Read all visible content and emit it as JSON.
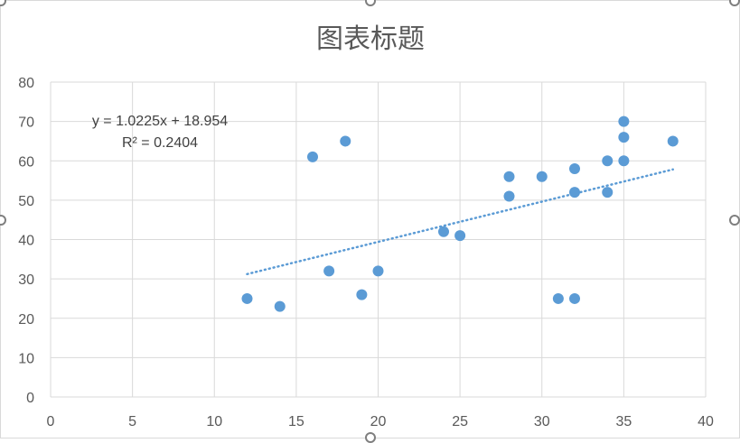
{
  "chart_data": {
    "type": "scatter",
    "title": "图表标题",
    "xlabel": "",
    "ylabel": "",
    "xlim": [
      0,
      40
    ],
    "ylim": [
      0,
      80
    ],
    "x_ticks": [
      0,
      5,
      10,
      15,
      20,
      25,
      30,
      35,
      40
    ],
    "y_ticks": [
      0,
      10,
      20,
      30,
      40,
      50,
      60,
      70,
      80
    ],
    "grid": true,
    "legend": "none",
    "series": [
      {
        "color": "#5b9bd5",
        "points": [
          [
            12,
            25
          ],
          [
            14,
            23
          ],
          [
            16,
            61
          ],
          [
            17,
            32
          ],
          [
            18,
            65
          ],
          [
            19,
            26
          ],
          [
            20,
            32
          ],
          [
            24,
            42
          ],
          [
            25,
            41
          ],
          [
            28,
            56
          ],
          [
            28,
            51
          ],
          [
            30,
            56
          ],
          [
            31,
            25
          ],
          [
            32,
            25
          ],
          [
            32,
            58
          ],
          [
            32,
            52
          ],
          [
            34,
            60
          ],
          [
            34,
            52
          ],
          [
            35,
            70
          ],
          [
            35,
            66
          ],
          [
            35,
            60
          ],
          [
            38,
            65
          ]
        ]
      }
    ],
    "trendline": {
      "type": "linear",
      "slope": 1.0225,
      "intercept": 18.954,
      "x_range": [
        12,
        38
      ],
      "color": "#5b9bd5",
      "style": "dotted",
      "equation_label": "y = 1.0225x + 18.954",
      "r2_label": "R² = 0.2404"
    }
  }
}
